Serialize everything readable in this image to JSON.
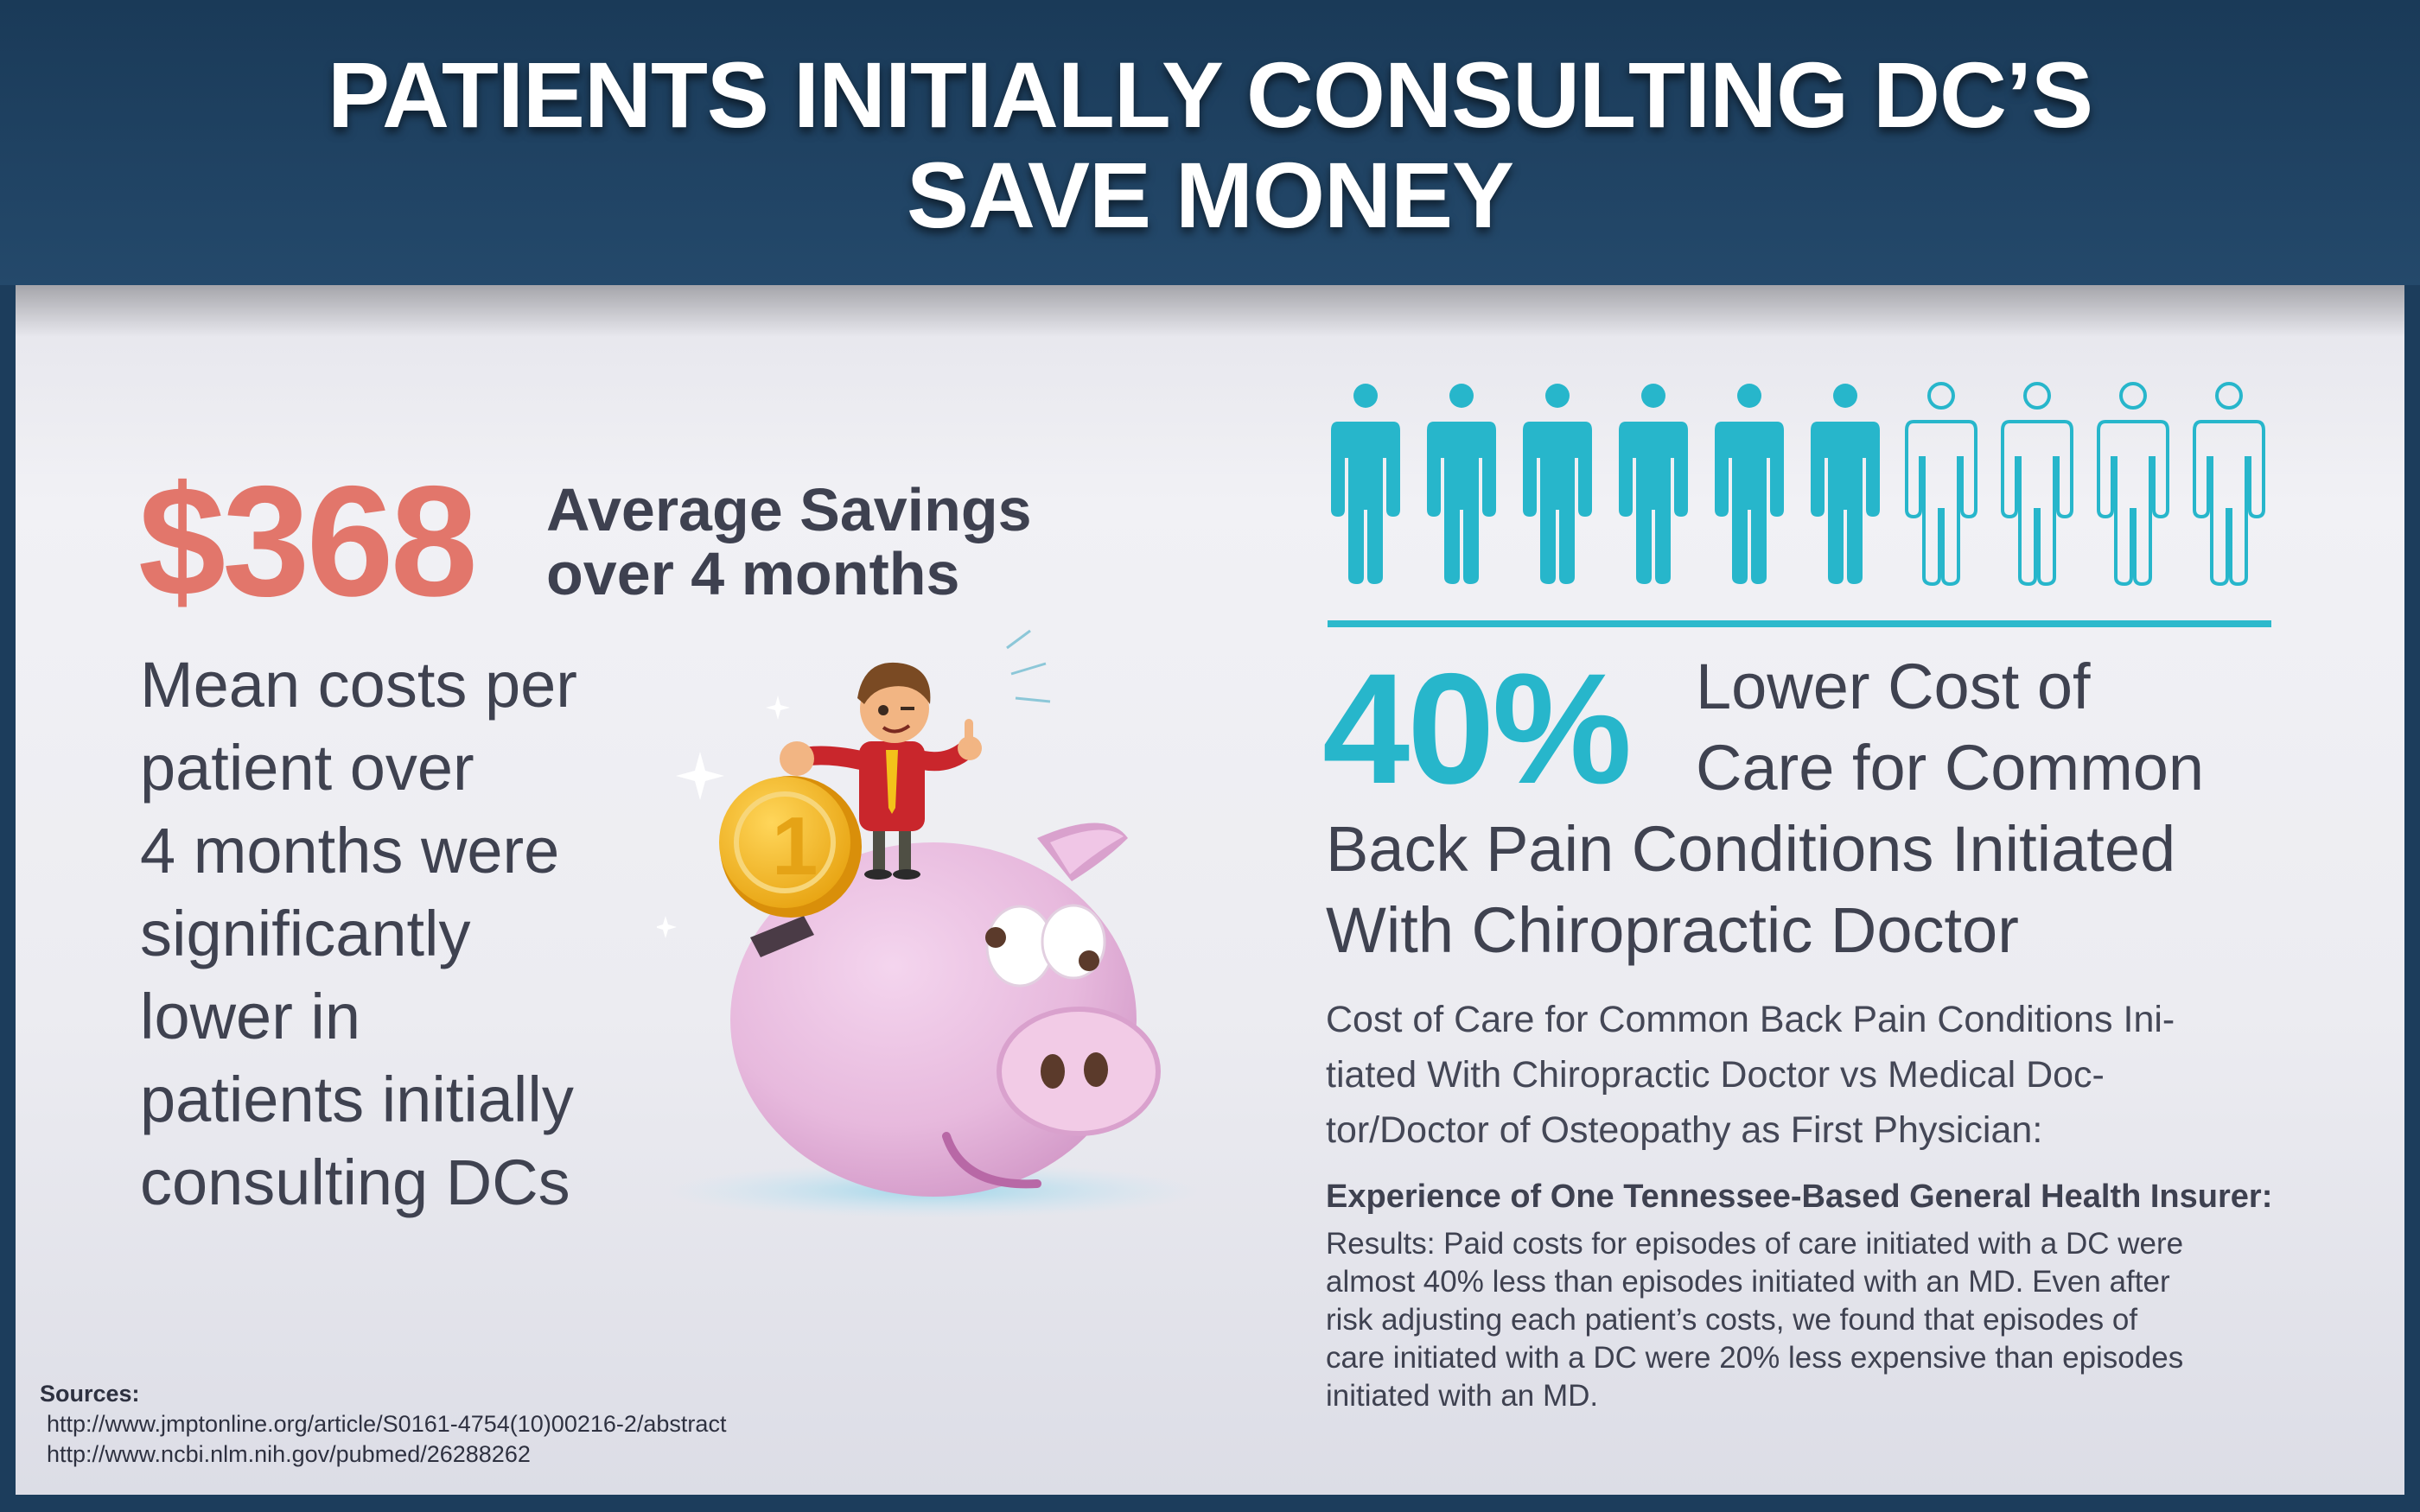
{
  "header": {
    "title_line1": "PATIENTS INITIALLY CONSULTING DC’S",
    "title_line2": "SAVE MONEY"
  },
  "left": {
    "savings_amount": "$368",
    "savings_label_line1": "Average Savings",
    "savings_label_line2": "over 4 months",
    "mean_lines": [
      "Mean costs per",
      "patient over",
      "4 months were",
      "significantly",
      "lower in",
      "patients initially",
      "consulting DCs"
    ]
  },
  "right": {
    "people_filled": 6,
    "people_total": 10,
    "percent": "40%",
    "percent_label_a1": "Lower Cost of",
    "percent_label_a2": "Care for Common",
    "percent_label_b1": "Back Pain Conditions Initiated",
    "percent_label_b2": "With Chiropractic Doctor",
    "cost_lines": [
      "Cost of Care for Common Back Pain Conditions Ini-",
      "tiated With Chiropractic Doctor vs Medical Doc-",
      "tor/Doctor of Osteopathy as First Physician:"
    ],
    "experience_title": "Experience of One Tennessee-Based General Health Insurer:",
    "results_lines": [
      "Results: Paid costs for episodes of care initiated with a DC were",
      "almost 40% less than episodes initiated with an MD. Even after",
      "risk adjusting each patient’s costs, we found that episodes of",
      "care initiated with a DC were 20% less expensive than episodes",
      "initiated with an MD."
    ]
  },
  "sources": {
    "heading": "Sources:",
    "urls": [
      "http://www.jmptonline.org/article/S0161-4754(10)00216-2/abstract",
      "http://www.ncbi.nlm.nih.gov/pubmed/26288262"
    ]
  },
  "colors": {
    "header_bg": "#1c3d5c",
    "money_red": "#e2766b",
    "accent_teal": "#27b6cb",
    "text_dark": "#3f4250",
    "pig_pink": "#e7b9dd"
  },
  "illustration": {
    "icons": [
      "piggy-bank-icon",
      "gold-coin-icon",
      "businessman-thumbs-up-icon",
      "sparkle-icon",
      "person-icon"
    ]
  }
}
